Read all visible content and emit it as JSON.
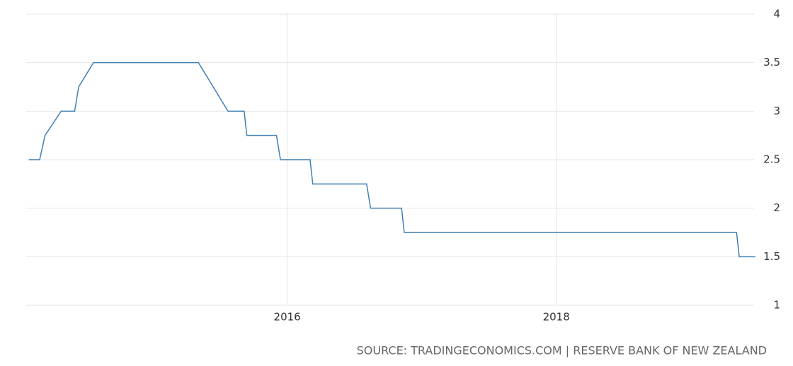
{
  "chart_data": {
    "type": "line",
    "x": [
      2014.08,
      2014.16,
      2014.2,
      2014.32,
      2014.42,
      2014.45,
      2014.56,
      2015.34,
      2015.56,
      2015.68,
      2015.7,
      2015.92,
      2015.95,
      2016.17,
      2016.19,
      2016.59,
      2016.62,
      2016.85,
      2016.87,
      2019.34,
      2019.36,
      2019.48
    ],
    "series": [
      {
        "color": "#3f7fb8",
        "values": [
          2.5,
          2.5,
          2.75,
          3,
          3,
          3.25,
          3.5,
          3.5,
          3,
          3,
          2.75,
          2.75,
          2.5,
          2.5,
          2.25,
          2.25,
          2,
          2,
          1.75,
          1.75,
          1.5,
          1.5
        ]
      }
    ],
    "xlim": [
      2014.06,
      2019.47
    ],
    "xticks": [
      2016,
      2018
    ],
    "ylim": [
      1,
      4
    ],
    "yticks": [
      1,
      1.5,
      2,
      2.5,
      3,
      3.5,
      4
    ],
    "grid": true,
    "source": "SOURCE: TRADINGECONOMICS.COM | RESERVE BANK OF NEW ZEALAND"
  }
}
